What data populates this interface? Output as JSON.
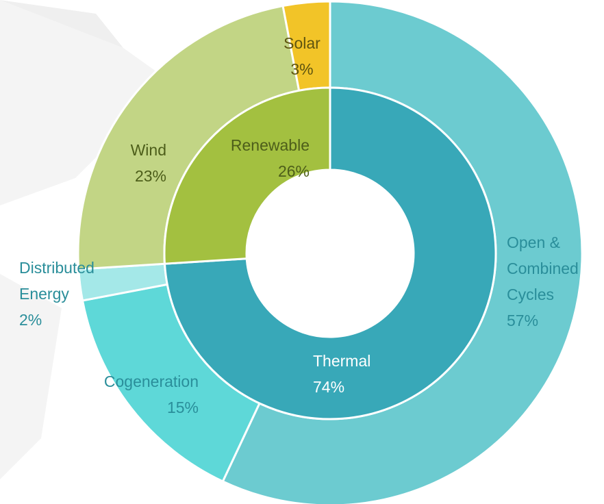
{
  "chart_data": {
    "type": "sunburst",
    "inner": {
      "categories": [
        "Thermal",
        "Renewable"
      ],
      "values": [
        74,
        26
      ],
      "value_labels": [
        "74%",
        "26%"
      ],
      "colors": [
        "#38a8b8",
        "#a3c040"
      ]
    },
    "outer": {
      "categories": [
        "Open & Combined Cycles",
        "Cogeneration",
        "Distributed Energy",
        "Wind",
        "Solar"
      ],
      "values": [
        57,
        15,
        2,
        23,
        3
      ],
      "value_labels": [
        "57%",
        "15%",
        "2%",
        "23%",
        "3%"
      ],
      "colors": [
        "#6ccbd0",
        "#5ed8d8",
        "#a4e8e8",
        "#c2d585",
        "#f2c428"
      ]
    }
  }
}
